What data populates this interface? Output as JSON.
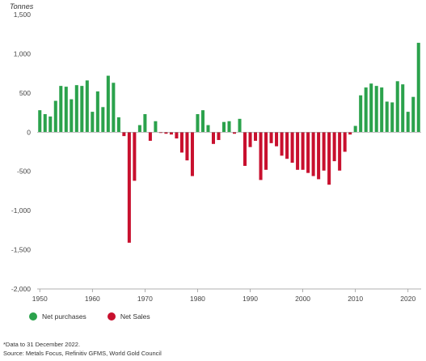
{
  "chart_data": {
    "type": "bar",
    "unit_label": "Tonnes",
    "ylim": [
      -2000,
      1500
    ],
    "y_ticks": [
      1500,
      1000,
      500,
      0,
      -500,
      -1000,
      -1500,
      -2000
    ],
    "y_tick_labels": [
      "1,500",
      "1,000",
      "500",
      "0",
      "-500",
      "-1,000",
      "-1,500",
      "-2,000"
    ],
    "x_ticks": [
      1950,
      1960,
      1970,
      1980,
      1990,
      2000,
      2010,
      2020
    ],
    "x_tick_labels": [
      "1950",
      "1960",
      "1970",
      "1980",
      "1990",
      "2000",
      "2010",
      "2020"
    ],
    "x": [
      1950,
      1951,
      1952,
      1953,
      1954,
      1955,
      1956,
      1957,
      1958,
      1959,
      1960,
      1961,
      1962,
      1963,
      1964,
      1965,
      1966,
      1967,
      1968,
      1969,
      1970,
      1971,
      1972,
      1973,
      1974,
      1975,
      1976,
      1977,
      1978,
      1979,
      1980,
      1981,
      1982,
      1983,
      1984,
      1985,
      1986,
      1987,
      1988,
      1989,
      1990,
      1991,
      1992,
      1993,
      1994,
      1995,
      1996,
      1997,
      1998,
      1999,
      2000,
      2001,
      2002,
      2003,
      2004,
      2005,
      2006,
      2007,
      2008,
      2009,
      2010,
      2011,
      2012,
      2013,
      2014,
      2015,
      2016,
      2017,
      2018,
      2019,
      2020,
      2021,
      2022
    ],
    "values": [
      280,
      230,
      200,
      400,
      590,
      580,
      420,
      600,
      590,
      660,
      260,
      520,
      320,
      720,
      630,
      190,
      -50,
      -1410,
      -620,
      90,
      230,
      -110,
      140,
      -10,
      -20,
      -30,
      -80,
      -260,
      -360,
      -560,
      230,
      280,
      90,
      -150,
      -100,
      130,
      140,
      -20,
      170,
      -430,
      -190,
      -110,
      -610,
      -480,
      -140,
      -180,
      -300,
      -340,
      -390,
      -480,
      -480,
      -520,
      -560,
      -600,
      -490,
      -670,
      -370,
      -490,
      -250,
      -30,
      80,
      470,
      570,
      620,
      590,
      570,
      390,
      380,
      650,
      610,
      260,
      450,
      1140
    ],
    "legend": [
      {
        "name": "Net purchases",
        "color": "#2ba24c"
      },
      {
        "name": "Net Sales",
        "color": "#c8102e"
      }
    ],
    "grid": false,
    "legend_position": "bottom-left",
    "colors": {
      "positive": "#2ba24c",
      "negative": "#c8102e"
    }
  },
  "notes": {
    "footnote": "*Data to 31 December 2022.",
    "source": "Source: Metals Focus, Refinitiv GFMS, World Gold Council"
  }
}
